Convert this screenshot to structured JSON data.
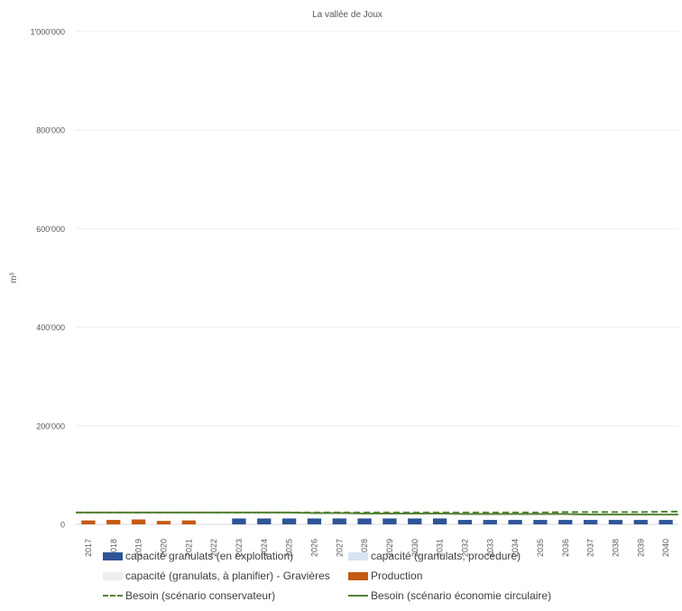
{
  "chart_data": {
    "type": "bar",
    "title": "La vallée de Joux",
    "ylabel": "m³",
    "xlabel": "",
    "ylim": [
      0,
      1000000
    ],
    "ytick_values": [
      0,
      200000,
      400000,
      600000,
      800000,
      1000000
    ],
    "ytick_labels": [
      "0",
      "200'000",
      "400'000",
      "600'000",
      "800'000",
      "1'000'000"
    ],
    "grid": true,
    "legend_position": "bottom",
    "categories": [
      "2017",
      "2018",
      "2019",
      "2020",
      "2021",
      "2022",
      "2023",
      "2024",
      "2025",
      "2026",
      "2027",
      "2028",
      "2029",
      "2030",
      "2031",
      "2032",
      "2033",
      "2034",
      "2035",
      "2036",
      "2037",
      "2038",
      "2039",
      "2040"
    ],
    "series": [
      {
        "name": "capacité granulats (en exploitation)",
        "kind": "bar",
        "color": "#2F5597",
        "values": [
          0,
          0,
          0,
          0,
          0,
          0,
          12000,
          12000,
          12000,
          12000,
          12000,
          12000,
          12000,
          12000,
          12000,
          9000,
          9000,
          9000,
          9000,
          9000,
          9000,
          9000,
          9000,
          9000
        ]
      },
      {
        "name": "capacité (granulats, procédure)",
        "kind": "bar",
        "color": "#DAE3F3",
        "values": [
          0,
          0,
          0,
          0,
          0,
          0,
          0,
          0,
          0,
          0,
          0,
          0,
          0,
          0,
          0,
          0,
          0,
          0,
          0,
          0,
          0,
          0,
          0,
          0
        ]
      },
      {
        "name": "capacité (granulats, à planifier) - Gravières",
        "kind": "bar",
        "color": "#EDEDED",
        "values": [
          0,
          0,
          0,
          0,
          0,
          0,
          0,
          0,
          0,
          0,
          0,
          0,
          0,
          0,
          0,
          0,
          0,
          0,
          0,
          0,
          0,
          0,
          0,
          0
        ]
      },
      {
        "name": "Production",
        "kind": "bar",
        "color": "#C55A11",
        "values": [
          8000,
          9000,
          10000,
          7000,
          8000,
          0,
          0,
          0,
          0,
          0,
          0,
          0,
          0,
          0,
          0,
          0,
          0,
          0,
          0,
          0,
          0,
          0,
          0,
          0
        ]
      },
      {
        "name": "Besoin (scénario conservateur)",
        "kind": "line",
        "dash": true,
        "color": "#548235",
        "values": [
          24000,
          24000,
          24000,
          24000,
          24000,
          24000,
          24000,
          24000,
          24000,
          24000,
          24000,
          24000,
          24000,
          24000,
          24000,
          24000,
          24000,
          24000,
          24000,
          25000,
          25000,
          25000,
          25000,
          26000
        ]
      },
      {
        "name": "Besoin (scénario économie circulaire)",
        "kind": "line",
        "dash": false,
        "color": "#548235",
        "values": [
          24000,
          24000,
          24000,
          24000,
          24000,
          24000,
          24000,
          24000,
          24000,
          23000,
          23000,
          22000,
          22000,
          22000,
          22000,
          21000,
          21000,
          21000,
          21000,
          21000,
          20000,
          20000,
          20000,
          20000
        ]
      }
    ]
  }
}
